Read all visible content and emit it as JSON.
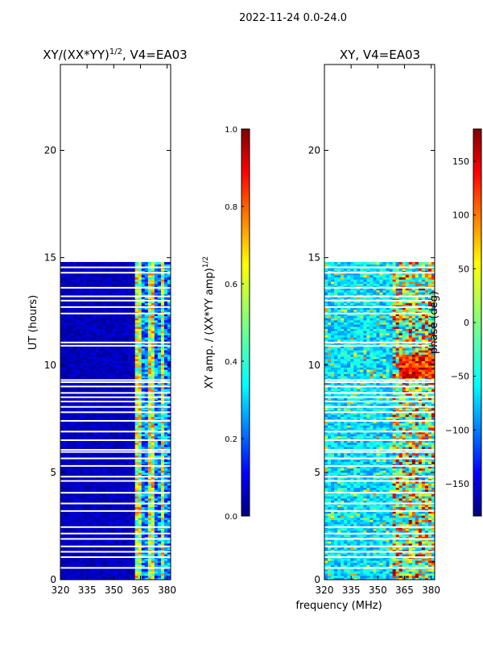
{
  "figure": {
    "suptitle": "2022-11-24 0.0-24.0",
    "shared_xlabel": "frequency (MHz)"
  },
  "chart_data": [
    {
      "type": "heatmap",
      "title_main": "XY/(XX*YY)",
      "title_sup": "1/2",
      "title_rest": ", V4=EA03",
      "xlabel": "",
      "ylabel": "UT (hours)",
      "xlim": [
        320,
        382
      ],
      "ylim": [
        0,
        24
      ],
      "xticks": [
        320,
        335,
        350,
        365,
        380
      ],
      "yticks": [
        0,
        5,
        10,
        15,
        20
      ],
      "data_extent_hours": [
        0,
        14.8
      ],
      "quantity": "amplitude",
      "colorbar": {
        "label_main": "XY amp. / (XX*YY amp)",
        "label_sup": "1/2",
        "vmin": 0.0,
        "vmax": 1.0,
        "ticks": [
          "0.0",
          "0.2",
          "0.4",
          "0.6",
          "0.8",
          "1.0"
        ],
        "tick_values": [
          0.0,
          0.2,
          0.4,
          0.6,
          0.8,
          1.0
        ]
      }
    },
    {
      "type": "heatmap",
      "title_main": "XY, V4=EA03",
      "title_sup": "",
      "title_rest": "",
      "xlabel": "frequency (MHz)",
      "ylabel": "",
      "xlim": [
        320,
        382
      ],
      "ylim": [
        0,
        24
      ],
      "xticks": [
        320,
        335,
        350,
        365,
        380
      ],
      "yticks": [
        0,
        5,
        10,
        15,
        20
      ],
      "data_extent_hours": [
        0,
        14.8
      ],
      "quantity": "phase",
      "colorbar": {
        "label_main": "phase (deg)",
        "label_sup": "",
        "vmin": -180,
        "vmax": 180,
        "ticks": [
          "−150",
          "−100",
          "−50",
          "0",
          "50",
          "100",
          "150"
        ],
        "tick_values": [
          -150,
          -100,
          -50,
          0,
          50,
          100,
          150
        ]
      }
    }
  ],
  "colors": {
    "jet": [
      "#00007f",
      "#0000ff",
      "#007fff",
      "#00ffff",
      "#7fff7f",
      "#ffff00",
      "#ff7f00",
      "#ff0000",
      "#7f0000"
    ],
    "frame": "#000000",
    "background": "#ffffff"
  }
}
